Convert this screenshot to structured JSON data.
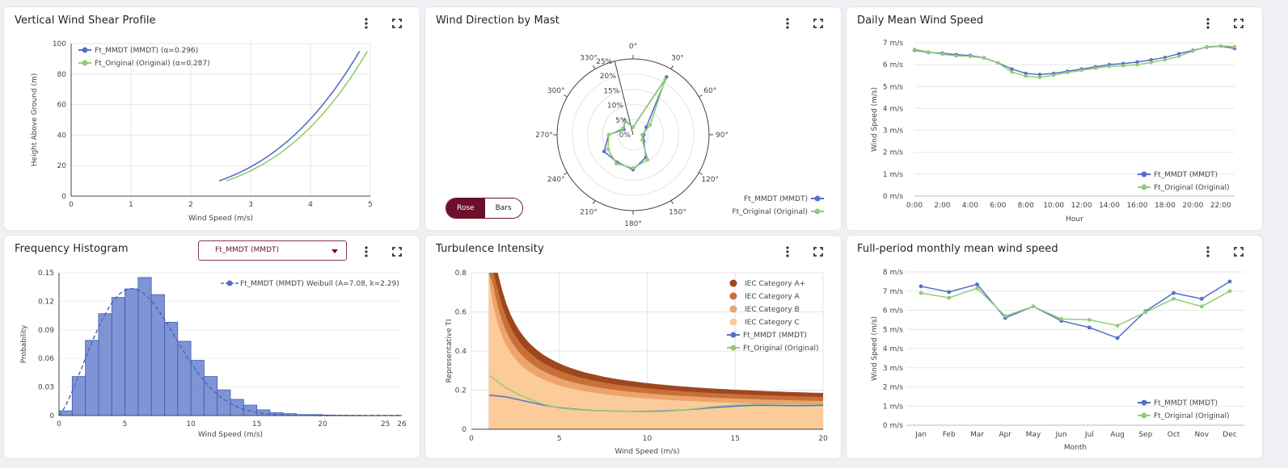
{
  "colors": {
    "mmdt": "#5470c6",
    "orig": "#91cc75",
    "accent": "#6b0f2a"
  },
  "icons": {
    "menu": "more-vert-icon",
    "expand": "fullscreen-icon"
  },
  "cards": {
    "shear": {
      "title": "Vertical Wind Shear Profile"
    },
    "direction": {
      "title": "Wind Direction by Mast",
      "toggle": {
        "rose": "Rose",
        "bars": "Bars",
        "selected": "Rose"
      }
    },
    "daily": {
      "title": "Daily Mean Wind Speed"
    },
    "histogram": {
      "title": "Frequency Histogram",
      "dropdown_value": "Ft_MMDT (MMDT)"
    },
    "turbulence": {
      "title": "Turbulence Intensity"
    },
    "monthly": {
      "title": "Full-period monthly mean wind speed"
    }
  },
  "chart_data": [
    {
      "id": "shear",
      "type": "line",
      "xlabel": "Wind Speed (m/s)",
      "ylabel": "Height Above Ground (m)",
      "xlim": [
        0,
        5
      ],
      "ylim": [
        0,
        100
      ],
      "xticks": [
        "0",
        "1",
        "2",
        "3",
        "4",
        "5"
      ],
      "yticks": [
        "0",
        "20",
        "40",
        "60",
        "80",
        "100"
      ],
      "legend_position": "top-left",
      "series": [
        {
          "name": "Ft_MMDT (MMDT) (α=0.296)",
          "ref_speed": 4.82,
          "ref_height": 95,
          "alpha": 0.296,
          "z_min": 10,
          "z_max": 95
        },
        {
          "name": "Ft_Original (Original) (α=0.287)",
          "ref_speed": 4.95,
          "ref_height": 95,
          "alpha": 0.287,
          "z_min": 10,
          "z_max": 95
        }
      ]
    },
    {
      "id": "direction",
      "type": "radar",
      "rmax": 25,
      "radial_ticks": [
        "0%",
        "5%",
        "10%",
        "15%",
        "20%",
        "25%"
      ],
      "angle_ticks": [
        "0°",
        "30°",
        "60°",
        "90°",
        "120°",
        "150°",
        "180°",
        "210°",
        "240°",
        "270°",
        "300°",
        "330°"
      ],
      "directions": [
        0,
        30,
        60,
        90,
        120,
        150,
        180,
        210,
        240,
        270,
        300,
        330
      ],
      "legend_position": "bottom-right",
      "series": [
        {
          "name": "Ft_MMDT (MMDT)",
          "values": [
            2.5,
            22.0,
            5.0,
            3.5,
            4.0,
            8.5,
            11.5,
            10.5,
            11.0,
            8.0,
            3.5,
            5.5
          ]
        },
        {
          "name": "Ft_Original (Original)",
          "values": [
            2.5,
            21.0,
            6.5,
            3.0,
            3.5,
            9.5,
            11.0,
            11.0,
            9.5,
            8.0,
            4.0,
            5.0
          ]
        }
      ]
    },
    {
      "id": "daily",
      "type": "line",
      "xlabel": "Hour",
      "ylabel": "Wind Speed (m/s)",
      "ylim": [
        0,
        7
      ],
      "x": [
        "0:00",
        "1:00",
        "2:00",
        "3:00",
        "4:00",
        "5:00",
        "6:00",
        "7:00",
        "8:00",
        "9:00",
        "10:00",
        "11:00",
        "12:00",
        "13:00",
        "14:00",
        "15:00",
        "16:00",
        "17:00",
        "18:00",
        "19:00",
        "20:00",
        "21:00",
        "22:00",
        "23:00"
      ],
      "xticks": [
        "0:00",
        "2:00",
        "4:00",
        "6:00",
        "8:00",
        "10:00",
        "12:00",
        "14:00",
        "16:00",
        "18:00",
        "20:00",
        "22:00"
      ],
      "yticks": [
        "0 m/s",
        "1 m/s",
        "2 m/s",
        "3 m/s",
        "4 m/s",
        "5 m/s",
        "6 m/s",
        "7 m/s"
      ],
      "legend_position": "bottom-right",
      "series": [
        {
          "name": "Ft_MMDT (MMDT)",
          "values": [
            6.66,
            6.56,
            6.52,
            6.46,
            6.42,
            6.31,
            6.08,
            5.8,
            5.6,
            5.55,
            5.6,
            5.7,
            5.8,
            5.9,
            6.0,
            6.05,
            6.12,
            6.22,
            6.33,
            6.5,
            6.65,
            6.8,
            6.85,
            6.74
          ]
        },
        {
          "name": "Ft_Original (Original)",
          "values": [
            6.7,
            6.58,
            6.48,
            6.4,
            6.38,
            6.3,
            6.08,
            5.66,
            5.48,
            5.42,
            5.52,
            5.64,
            5.74,
            5.84,
            5.92,
            5.95,
            6.0,
            6.1,
            6.22,
            6.38,
            6.62,
            6.82,
            6.86,
            6.82
          ]
        }
      ]
    },
    {
      "id": "histogram",
      "type": "bar",
      "xlabel": "Wind Speed (m/s)",
      "ylabel": "Probability",
      "xlim": [
        0,
        26
      ],
      "ylim": [
        0,
        0.15
      ],
      "xticks": [
        0,
        5,
        10,
        15,
        20,
        25,
        26
      ],
      "yticks": [
        "0",
        "0.03",
        "0.06",
        "0.09",
        "0.12",
        "0.15"
      ],
      "bin_width": 1,
      "legend_position": "top-right",
      "series": [
        {
          "name": "Ft_MMDT (MMDT) Weibull (A=7.08, k=2.29)",
          "values": [
            0.005,
            0.041,
            0.079,
            0.107,
            0.124,
            0.133,
            0.145,
            0.127,
            0.098,
            0.078,
            0.058,
            0.041,
            0.027,
            0.017,
            0.011,
            0.006,
            0.003,
            0.002,
            0.001,
            0.001,
            0.0005,
            0.0003,
            0.0002,
            0.0001,
            0.0001,
            0.0001
          ],
          "weibull_A": 7.08,
          "weibull_k": 2.29
        }
      ]
    },
    {
      "id": "turbulence",
      "type": "area",
      "xlabel": "Wind Speed (m/s)",
      "ylabel": "Representative TI",
      "xlim": [
        0,
        20
      ],
      "ylim": [
        0,
        0.8
      ],
      "xticks": [
        "0",
        "5",
        "10",
        "15",
        "20"
      ],
      "yticks": [
        "0",
        "0.2",
        "0.4",
        "0.6",
        "0.8"
      ],
      "legend_position": "top-right",
      "categories": [
        {
          "name": "IEC Category A+",
          "iref": 0.18,
          "color": "#a0461f"
        },
        {
          "name": "IEC Category A",
          "iref": 0.16,
          "color": "#c8703a"
        },
        {
          "name": "IEC Category B",
          "iref": 0.14,
          "color": "#eda46c"
        },
        {
          "name": "IEC Category C",
          "iref": 0.12,
          "color": "#fbcb9a"
        }
      ],
      "series": [
        {
          "name": "Ft_MMDT (MMDT)",
          "x": [
            1,
            2,
            3,
            4,
            5,
            6,
            7,
            8,
            9,
            10,
            11,
            12,
            13,
            14,
            15,
            16,
            17,
            18,
            19,
            20
          ],
          "values": [
            0.175,
            0.165,
            0.145,
            0.125,
            0.11,
            0.102,
            0.096,
            0.093,
            0.092,
            0.092,
            0.094,
            0.098,
            0.105,
            0.112,
            0.118,
            0.122,
            0.122,
            0.121,
            0.121,
            0.122
          ]
        },
        {
          "name": "Ft_Original (Original)",
          "x": [
            1,
            2,
            3,
            4,
            5,
            6,
            7,
            8,
            9,
            10,
            11,
            12,
            13,
            14,
            15,
            16,
            17,
            18,
            19,
            20
          ],
          "values": [
            0.275,
            0.21,
            0.165,
            0.13,
            0.108,
            0.1,
            0.096,
            0.093,
            0.091,
            0.09,
            0.091,
            0.098,
            0.108,
            0.118,
            0.124,
            0.128,
            0.13,
            0.13,
            0.129,
            0.13
          ]
        }
      ]
    },
    {
      "id": "monthly",
      "type": "line",
      "xlabel": "Month",
      "ylabel": "Wind Speed (m/s)",
      "ylim": [
        0,
        8
      ],
      "categories": [
        "Jan",
        "Feb",
        "Mar",
        "Apr",
        "May",
        "Jun",
        "Jul",
        "Aug",
        "Sep",
        "Oct",
        "Nov",
        "Dec"
      ],
      "yticks": [
        "0 m/s",
        "1 m/s",
        "2 m/s",
        "3 m/s",
        "4 m/s",
        "5 m/s",
        "6 m/s",
        "7 m/s",
        "8 m/s"
      ],
      "legend_position": "bottom-right",
      "series": [
        {
          "name": "Ft_MMDT (MMDT)",
          "values": [
            7.25,
            6.95,
            7.35,
            5.6,
            6.2,
            5.45,
            5.1,
            4.55,
            5.95,
            6.9,
            6.6,
            7.5
          ]
        },
        {
          "name": "Ft_Original (Original)",
          "values": [
            6.9,
            6.65,
            7.15,
            5.7,
            6.2,
            5.55,
            5.5,
            5.2,
            5.9,
            6.6,
            6.2,
            7.0
          ]
        }
      ]
    }
  ]
}
